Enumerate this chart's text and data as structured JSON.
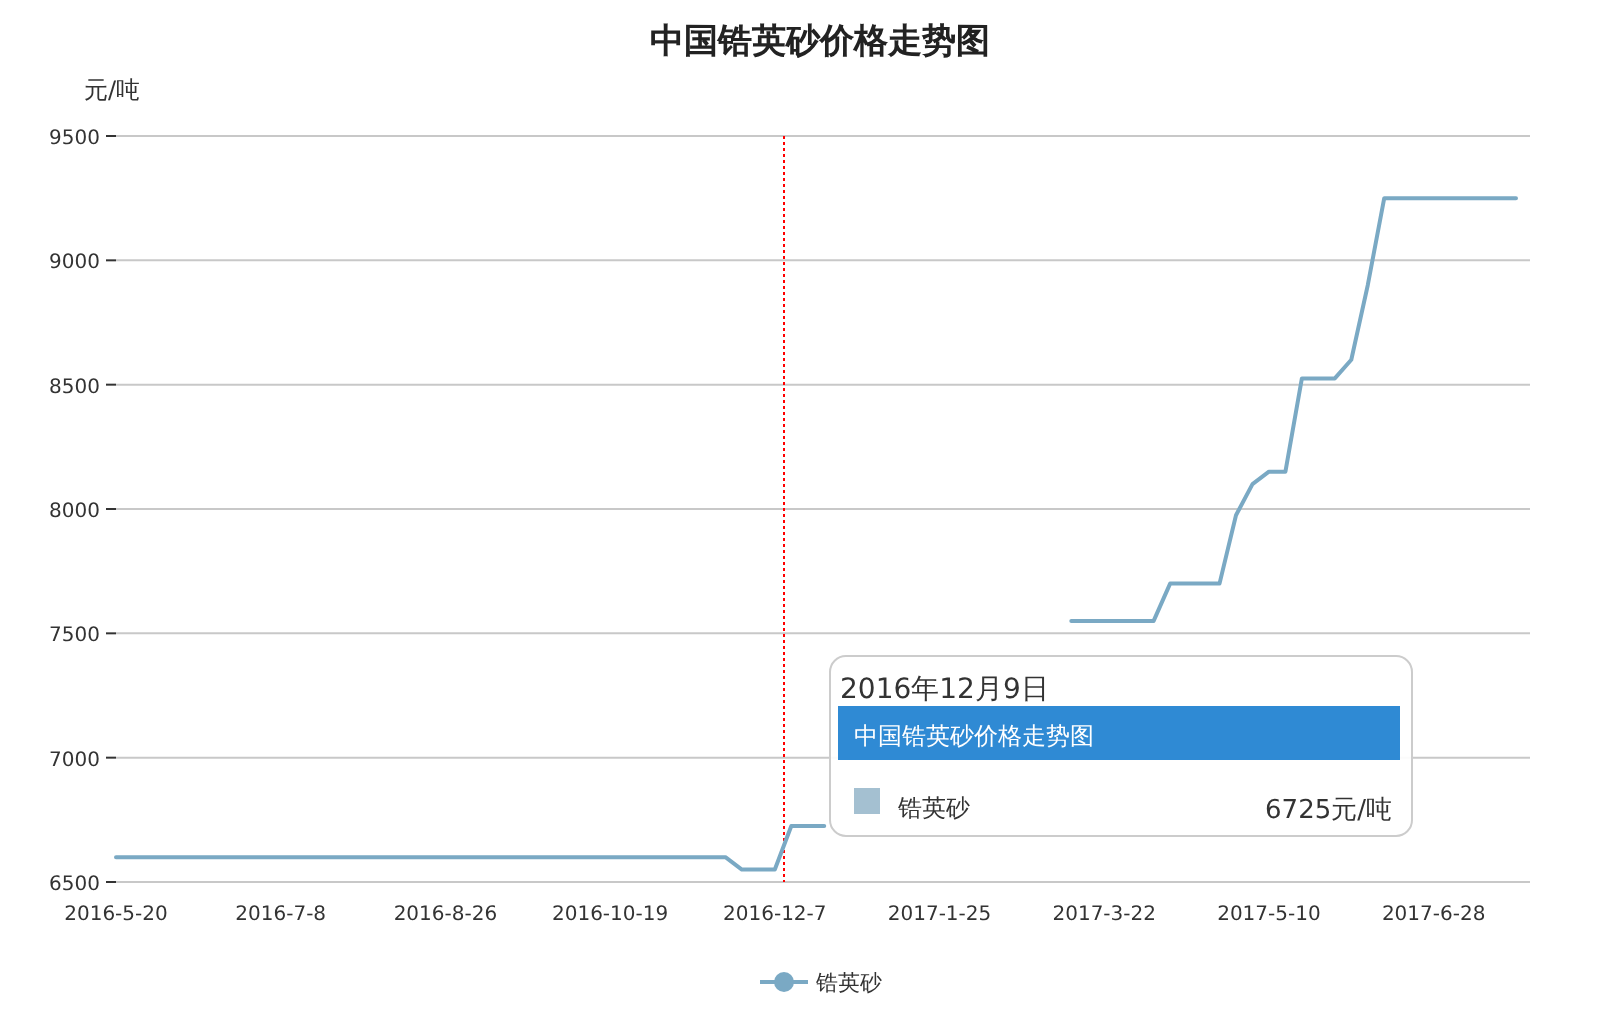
{
  "chart_data": {
    "type": "line",
    "title": "中国锆英砂价格走势图",
    "ylabel": "元/吨",
    "categories": [
      "2016-5-20",
      null,
      null,
      null,
      null,
      null,
      null,
      null,
      null,
      null,
      "2016-7-8",
      null,
      null,
      null,
      null,
      null,
      null,
      null,
      null,
      null,
      "2016-8-26",
      null,
      null,
      null,
      null,
      null,
      null,
      null,
      null,
      null,
      "2016-10-19",
      null,
      null,
      null,
      null,
      null,
      null,
      null,
      null,
      null,
      "2016-12-7",
      null,
      null,
      null,
      null,
      null,
      null,
      null,
      null,
      null,
      "2017-1-25",
      null,
      null,
      null,
      null,
      null,
      null,
      null,
      null,
      null,
      "2017-3-22",
      null,
      null,
      null,
      null,
      null,
      null,
      null,
      null,
      null,
      "2017-5-10",
      null,
      null,
      null,
      null,
      null,
      null,
      null,
      null,
      null,
      "2017-6-28",
      null,
      null,
      null,
      null,
      null
    ],
    "series": [
      {
        "name": "锆英砂",
        "color": "#7aa9c4",
        "values": [
          6600,
          6600,
          6600,
          6600,
          6600,
          6600,
          6600,
          6600,
          6600,
          6600,
          6600,
          6600,
          6600,
          6600,
          6600,
          6600,
          6600,
          6600,
          6600,
          6600,
          6600,
          6600,
          6600,
          6600,
          6600,
          6600,
          6600,
          6600,
          6600,
          6600,
          6600,
          6600,
          6600,
          6600,
          6600,
          6600,
          6600,
          6600,
          6550,
          6550,
          6550,
          6725,
          6725,
          6725,
          null,
          null,
          null,
          null,
          null,
          null,
          null,
          null,
          null,
          null,
          null,
          null,
          null,
          null,
          7550,
          7550,
          7550,
          7550,
          7550,
          7550,
          7700,
          7700,
          7700,
          7700,
          7975,
          8100,
          8150,
          8150,
          8525,
          8525,
          8525,
          8600,
          8900,
          9250,
          9250,
          9250,
          9250,
          9250,
          9250,
          9250,
          9250,
          9250
        ]
      }
    ],
    "ylim": [
      6500,
      9500
    ],
    "yticks": [
      6500,
      7000,
      7500,
      8000,
      8500,
      9000,
      9500
    ],
    "grid": "y",
    "legend": "bottom",
    "line_style": "solid",
    "annotations": [
      "2016年12月9日",
      "中国锆英砂价格走势图",
      "锆英砂",
      "6725元/吨"
    ]
  }
}
